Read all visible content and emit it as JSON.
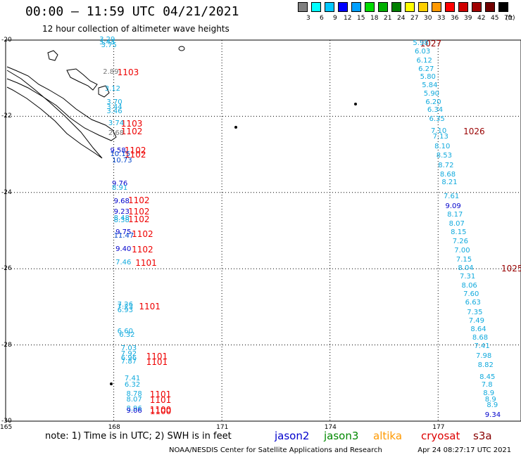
{
  "header": {
    "title": "00:00 – 11:59 UTC 04/21/2021",
    "subtitle": "12 hour collection of altimeter wave heights"
  },
  "scale": {
    "unit": "(ft)",
    "labels": [
      "3",
      "6",
      "9",
      "12",
      "15",
      "18",
      "21",
      "24",
      "27",
      "30",
      "33",
      "36",
      "39",
      "42",
      "45",
      "70"
    ],
    "colors": [
      "#808080",
      "#00ffff",
      "#00c8ff",
      "#0000ff",
      "#00a0ff",
      "#00dd00",
      "#00b000",
      "#008000",
      "#ffff00",
      "#ffd000",
      "#ff9900",
      "#ff0000",
      "#d00000",
      "#a00000",
      "#700000",
      "#000000"
    ]
  },
  "axes": {
    "lat_labels": [
      "-20",
      "-22",
      "-24",
      "-26",
      "-28",
      "-30"
    ],
    "lon_labels": [
      "165",
      "168",
      "171",
      "174",
      "177"
    ]
  },
  "chart_data": {
    "type": "scatter",
    "description_units": "significant wave height in feet",
    "pass_labels": [
      {
        "text": "1103",
        "lon": 168.1,
        "lat": -20.85
      },
      {
        "text": "1103",
        "lon": 168.2,
        "lat": -22.2
      },
      {
        "text": "1102",
        "lon": 168.2,
        "lat": -22.4
      },
      {
        "text": "1102",
        "lon": 168.3,
        "lat": -22.9
      },
      {
        "text": "1102",
        "lon": 168.3,
        "lat": -23.0
      },
      {
        "text": "1102",
        "lon": 168.4,
        "lat": -24.2
      },
      {
        "text": "1102",
        "lon": 168.4,
        "lat": -24.5
      },
      {
        "text": "1102",
        "lon": 168.4,
        "lat": -24.7
      },
      {
        "text": "1102",
        "lon": 168.5,
        "lat": -25.1
      },
      {
        "text": "1102",
        "lon": 168.5,
        "lat": -25.5
      },
      {
        "text": "1101",
        "lon": 168.6,
        "lat": -25.85
      },
      {
        "text": "1101",
        "lon": 168.7,
        "lat": -27.0
      },
      {
        "text": "1101",
        "lon": 168.9,
        "lat": -28.3
      },
      {
        "text": "1101",
        "lon": 168.9,
        "lat": -28.45
      },
      {
        "text": "1101",
        "lon": 169.0,
        "lat": -29.3
      },
      {
        "text": "1101",
        "lon": 169.0,
        "lat": -29.45
      },
      {
        "text": "1100",
        "lon": 169.0,
        "lat": -29.7
      },
      {
        "text": "1100",
        "lon": 169.0,
        "lat": -29.75
      },
      {
        "text": "1027",
        "lon": 176.5,
        "lat": -20.1
      },
      {
        "text": "1026",
        "lon": 177.7,
        "lat": -22.4
      },
      {
        "text": "1025",
        "lon": 179.2,
        "lat": -26.0
      }
    ],
    "west_track": [
      {
        "v": "3.29",
        "lon": 167.6,
        "lat": -20.0
      },
      {
        "v": "3.43",
        "lon": 167.6,
        "lat": -20.08
      },
      {
        "v": "3.75",
        "lon": 167.65,
        "lat": -20.15
      },
      {
        "v": "2.89",
        "lon": 167.7,
        "lat": -20.85
      },
      {
        "v": "3.12",
        "lon": 167.75,
        "lat": -21.3
      },
      {
        "v": "3.70",
        "lon": 167.8,
        "lat": -21.65
      },
      {
        "v": "3.44",
        "lon": 167.8,
        "lat": -21.78
      },
      {
        "v": "3.46",
        "lon": 167.8,
        "lat": -21.88
      },
      {
        "v": "3.74",
        "lon": 167.85,
        "lat": -22.2
      },
      {
        "v": "2.68",
        "lon": 167.85,
        "lat": -22.45
      },
      {
        "v": "9.58",
        "lon": 167.9,
        "lat": -22.92
      },
      {
        "v": "10.15",
        "lon": 167.9,
        "lat": -23.0
      },
      {
        "v": "10.73",
        "lon": 167.95,
        "lat": -23.18
      },
      {
        "v": "9.76",
        "lon": 167.95,
        "lat": -23.78
      },
      {
        "v": "8.91",
        "lon": 167.95,
        "lat": -23.9
      },
      {
        "v": "9.68",
        "lon": 168.0,
        "lat": -24.25
      },
      {
        "v": "9.23",
        "lon": 168.0,
        "lat": -24.52
      },
      {
        "v": "8.48",
        "lon": 168.0,
        "lat": -24.68
      },
      {
        "v": "8.38",
        "lon": 168.0,
        "lat": -24.75
      },
      {
        "v": "9.75",
        "lon": 168.05,
        "lat": -25.05
      },
      {
        "v": "11.47",
        "lon": 168.0,
        "lat": -25.15
      },
      {
        "v": "9.40",
        "lon": 168.05,
        "lat": -25.5
      },
      {
        "v": "7.46",
        "lon": 168.05,
        "lat": -25.85
      },
      {
        "v": "7.26",
        "lon": 168.1,
        "lat": -26.95
      },
      {
        "v": "7.23",
        "lon": 168.1,
        "lat": -27.02
      },
      {
        "v": "6.93",
        "lon": 168.1,
        "lat": -27.1
      },
      {
        "v": "6.60",
        "lon": 168.1,
        "lat": -27.65
      },
      {
        "v": "6.32",
        "lon": 168.15,
        "lat": -27.75
      },
      {
        "v": "7.03",
        "lon": 168.2,
        "lat": -28.1
      },
      {
        "v": "7.92",
        "lon": 168.2,
        "lat": -28.25
      },
      {
        "v": "6.96",
        "lon": 168.2,
        "lat": -28.35
      },
      {
        "v": "7.87",
        "lon": 168.2,
        "lat": -28.45
      },
      {
        "v": "7.41",
        "lon": 168.3,
        "lat": -28.9
      },
      {
        "v": "6.32",
        "lon": 168.3,
        "lat": -29.05
      },
      {
        "v": "8.78",
        "lon": 168.35,
        "lat": -29.3
      },
      {
        "v": "8.07",
        "lon": 168.35,
        "lat": -29.45
      },
      {
        "v": "8.96",
        "lon": 168.35,
        "lat": -29.68
      },
      {
        "v": "9.06",
        "lon": 168.35,
        "lat": -29.75
      }
    ],
    "east_track": [
      {
        "v": "5.98",
        "lon": 176.3,
        "lat": -20.1
      },
      {
        "v": "6.03",
        "lon": 176.35,
        "lat": -20.32
      },
      {
        "v": "6.12",
        "lon": 176.4,
        "lat": -20.55
      },
      {
        "v": "6.27",
        "lon": 176.45,
        "lat": -20.77
      },
      {
        "v": "5.80",
        "lon": 176.5,
        "lat": -20.98
      },
      {
        "v": "5.84",
        "lon": 176.55,
        "lat": -21.2
      },
      {
        "v": "5.90",
        "lon": 176.6,
        "lat": -21.42
      },
      {
        "v": "6.20",
        "lon": 176.65,
        "lat": -21.65
      },
      {
        "v": "6.34",
        "lon": 176.7,
        "lat": -21.85
      },
      {
        "v": "6.35",
        "lon": 176.75,
        "lat": -22.08
      },
      {
        "v": "7.10",
        "lon": 176.8,
        "lat": -22.4
      },
      {
        "v": "7.13",
        "lon": 176.85,
        "lat": -22.55
      },
      {
        "v": "8.10",
        "lon": 176.9,
        "lat": -22.8
      },
      {
        "v": "8.53",
        "lon": 176.95,
        "lat": -23.05
      },
      {
        "v": "8.72",
        "lon": 177.0,
        "lat": -23.3
      },
      {
        "v": "8.68",
        "lon": 177.05,
        "lat": -23.55
      },
      {
        "v": "8.21",
        "lon": 177.1,
        "lat": -23.75
      },
      {
        "v": "7.61",
        "lon": 177.15,
        "lat": -24.12
      },
      {
        "v": "9.09",
        "lon": 177.2,
        "lat": -24.37
      },
      {
        "v": "8.17",
        "lon": 177.25,
        "lat": -24.6
      },
      {
        "v": "8.07",
        "lon": 177.3,
        "lat": -24.83
      },
      {
        "v": "8.15",
        "lon": 177.35,
        "lat": -25.05
      },
      {
        "v": "7.26",
        "lon": 177.4,
        "lat": -25.3
      },
      {
        "v": "7.00",
        "lon": 177.45,
        "lat": -25.53
      },
      {
        "v": "7.15",
        "lon": 177.5,
        "lat": -25.77
      },
      {
        "v": "8.04",
        "lon": 177.55,
        "lat": -26.0
      },
      {
        "v": "7.31",
        "lon": 177.6,
        "lat": -26.22
      },
      {
        "v": "8.06",
        "lon": 177.65,
        "lat": -26.45
      },
      {
        "v": "7.60",
        "lon": 177.7,
        "lat": -26.68
      },
      {
        "v": "6.63",
        "lon": 177.75,
        "lat": -26.9
      },
      {
        "v": "7.35",
        "lon": 177.8,
        "lat": -27.15
      },
      {
        "v": "7.49",
        "lon": 177.85,
        "lat": -27.38
      },
      {
        "v": "8.64",
        "lon": 177.9,
        "lat": -27.6
      },
      {
        "v": "8.68",
        "lon": 177.95,
        "lat": -27.83
      },
      {
        "v": "7.41",
        "lon": 178.0,
        "lat": -28.05
      },
      {
        "v": "7.98",
        "lon": 178.05,
        "lat": -28.3
      },
      {
        "v": "8.82",
        "lon": 178.1,
        "lat": -28.55
      },
      {
        "v": "8.45",
        "lon": 178.15,
        "lat": -28.85
      },
      {
        "v": "7.8",
        "lon": 178.2,
        "lat": -29.05
      },
      {
        "v": "8.9",
        "lon": 178.25,
        "lat": -29.28
      },
      {
        "v": "8.9",
        "lon": 178.3,
        "lat": -29.45
      },
      {
        "v": "8.9",
        "lon": 178.35,
        "lat": -29.6
      },
      {
        "v": "9.34",
        "lon": 178.3,
        "lat": -29.85
      }
    ]
  },
  "footer": {
    "note": "note:  1) Time is in UTC;  2) SWH is in feet",
    "satellites": [
      {
        "name": "jason2",
        "color": "#0000cc"
      },
      {
        "name": "jason3",
        "color": "#008800"
      },
      {
        "name": "altika",
        "color": "#ff9900"
      },
      {
        "name": "cryosat",
        "color": "#dd0000"
      },
      {
        "name": "s3a",
        "color": "#880000"
      }
    ],
    "credit": "NOAA/NESDIS Center for Satellite Applications and Research",
    "timestamp": "Apr 24 08:27:17 UTC 2021"
  }
}
